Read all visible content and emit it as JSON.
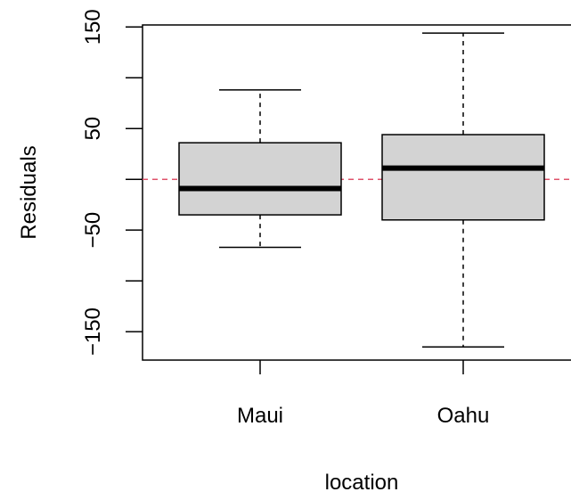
{
  "chart_data": {
    "type": "box",
    "title": "",
    "xlabel": "location",
    "ylabel": "Residuals",
    "categories": [
      "Maui",
      "Oahu"
    ],
    "ylim": [
      -178,
      152
    ],
    "y_ticks": [
      150,
      100,
      50,
      0,
      -50,
      -100,
      -150
    ],
    "y_tick_labels": [
      "150",
      "",
      "50",
      "",
      "−50",
      "",
      "−150"
    ],
    "boxes": [
      {
        "name": "Maui",
        "whisker_low": -67,
        "q1": -35,
        "median": -9,
        "q3": 36,
        "whisker_high": 88
      },
      {
        "name": "Oahu",
        "whisker_low": -165,
        "q1": -40,
        "median": 11,
        "q3": 44,
        "whisker_high": 144
      }
    ],
    "reference_line": {
      "y": 0,
      "color": "#df536b",
      "style": "dashed"
    },
    "box_fill": "#d3d3d3",
    "grid": false
  }
}
